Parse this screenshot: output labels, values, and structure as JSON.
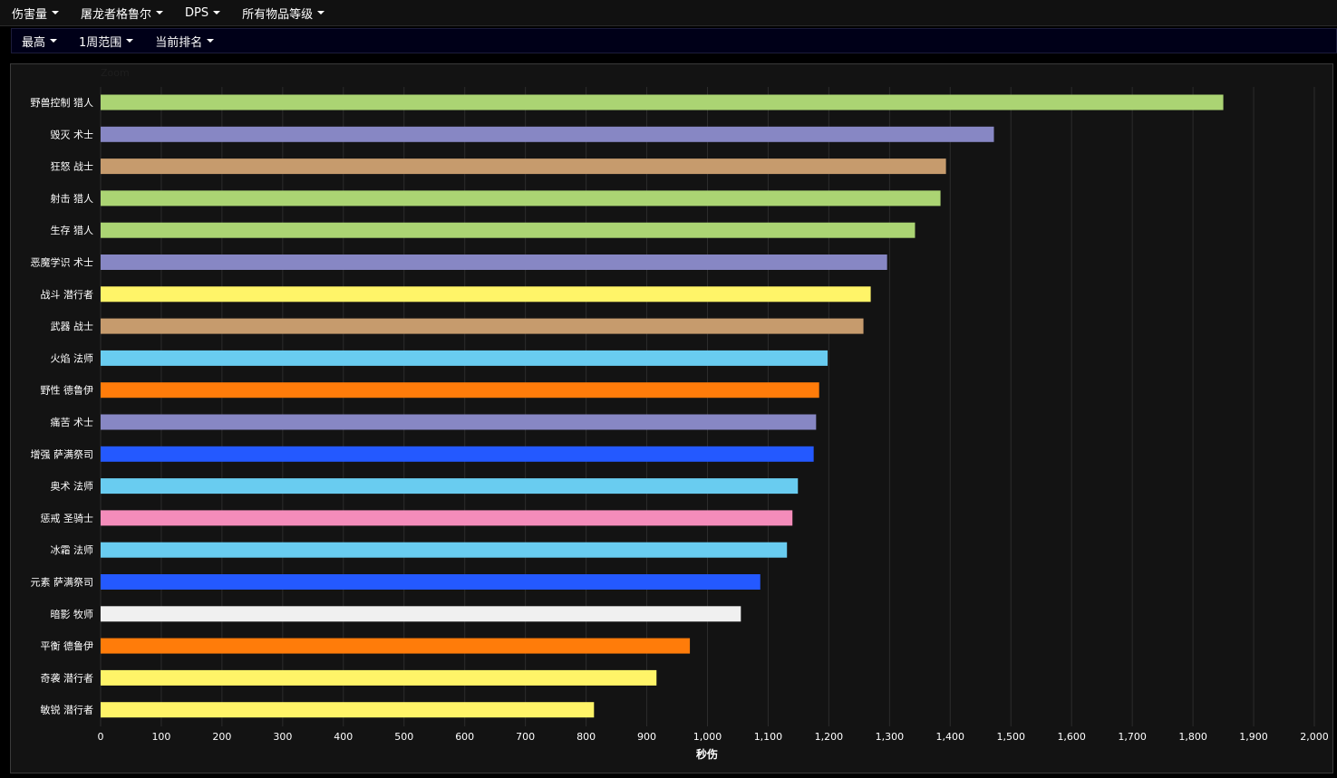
{
  "toolbar": {
    "metric": "伤害量",
    "boss": "屠龙者格鲁尔",
    "mode": "DPS",
    "item_level": "所有物品等级"
  },
  "subbar": {
    "stat": "最高",
    "range": "1周范围",
    "ranking": "当前排名"
  },
  "zoom_label": "Zoom",
  "chart_data": {
    "type": "bar",
    "orientation": "horizontal",
    "xlabel": "秒伤",
    "xlim": [
      0,
      2000
    ],
    "xticks": [
      0,
      100,
      200,
      300,
      400,
      500,
      600,
      700,
      800,
      900,
      1000,
      1100,
      1200,
      1300,
      1400,
      1500,
      1600,
      1700,
      1800,
      1900,
      2000
    ],
    "xtick_labels": [
      "0",
      "100",
      "200",
      "300",
      "400",
      "500",
      "600",
      "700",
      "800",
      "900",
      "1,000",
      "1,100",
      "1,200",
      "1,300",
      "1,400",
      "1,500",
      "1,600",
      "1,700",
      "1,800",
      "1,900",
      "2,000"
    ],
    "grid": true,
    "categories": [
      "野兽控制 猎人",
      "毁灭 术士",
      "狂怒 战士",
      "射击 猎人",
      "生存 猎人",
      "恶魔学识 术士",
      "战斗 潜行者",
      "武器 战士",
      "火焰 法师",
      "野性 德鲁伊",
      "痛苦 术士",
      "增强 萨满祭司",
      "奥术 法师",
      "惩戒 圣骑士",
      "冰霜 法师",
      "元素 萨满祭司",
      "暗影 牧师",
      "平衡 德鲁伊",
      "奇袭 潜行者",
      "敏锐 潜行者"
    ],
    "values": [
      1850,
      1472,
      1393,
      1384,
      1342,
      1296,
      1269,
      1257,
      1198,
      1184,
      1179,
      1175,
      1149,
      1140,
      1131,
      1087,
      1055,
      971,
      916,
      813
    ],
    "colors": [
      "#abd473",
      "#8787c4",
      "#c69b6d",
      "#abd473",
      "#abd473",
      "#8787c4",
      "#fff468",
      "#c69b6d",
      "#69ccf0",
      "#ff7c0a",
      "#8787c4",
      "#2459ff",
      "#69ccf0",
      "#f48cba",
      "#69ccf0",
      "#2459ff",
      "#f0f0f0",
      "#ff7c0a",
      "#fff468",
      "#fff468"
    ]
  }
}
